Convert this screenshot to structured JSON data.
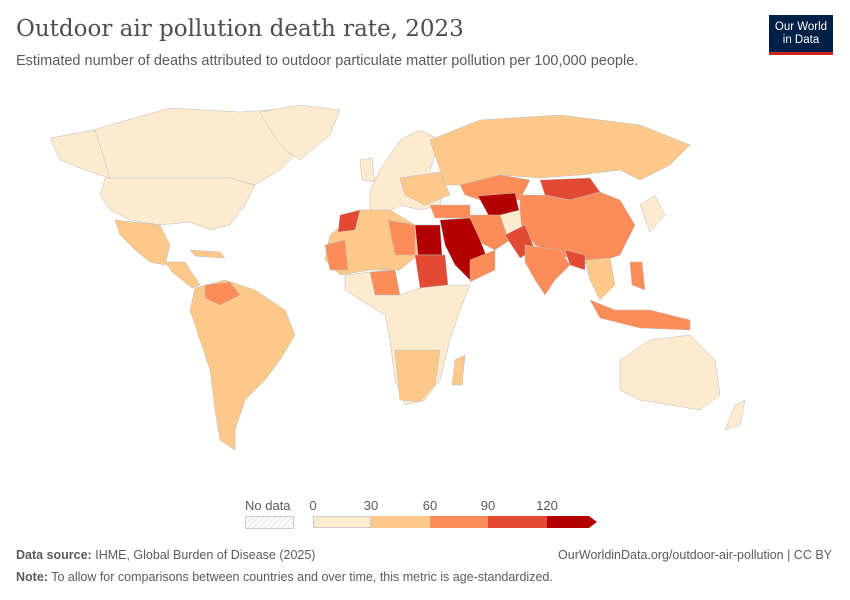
{
  "header": {
    "title": "Outdoor air pollution death rate, 2023",
    "subtitle": "Estimated number of deaths attributed to outdoor particulate matter pollution per 100,000 people.",
    "logo": "Our World in Data"
  },
  "legend": {
    "no_data_label": "No data",
    "ticks": [
      "0",
      "30",
      "60",
      "90",
      "120"
    ],
    "bins": [
      {
        "range": "0-30",
        "color": "#fdebcf"
      },
      {
        "range": "30-60",
        "color": "#fdc98a"
      },
      {
        "range": "60-90",
        "color": "#fc8d59"
      },
      {
        "range": "90-120",
        "color": "#e34a33"
      },
      {
        "range": ">120",
        "color": "#b30000"
      }
    ]
  },
  "footer": {
    "source_label": "Data source:",
    "source": "IHME, Global Burden of Disease (2025)",
    "url": "OurWorldinData.org/outdoor-air-pollution | CC BY",
    "note_label": "Note:",
    "note": "To allow for comparisons between countries and over time, this metric is age-standardized."
  }
}
